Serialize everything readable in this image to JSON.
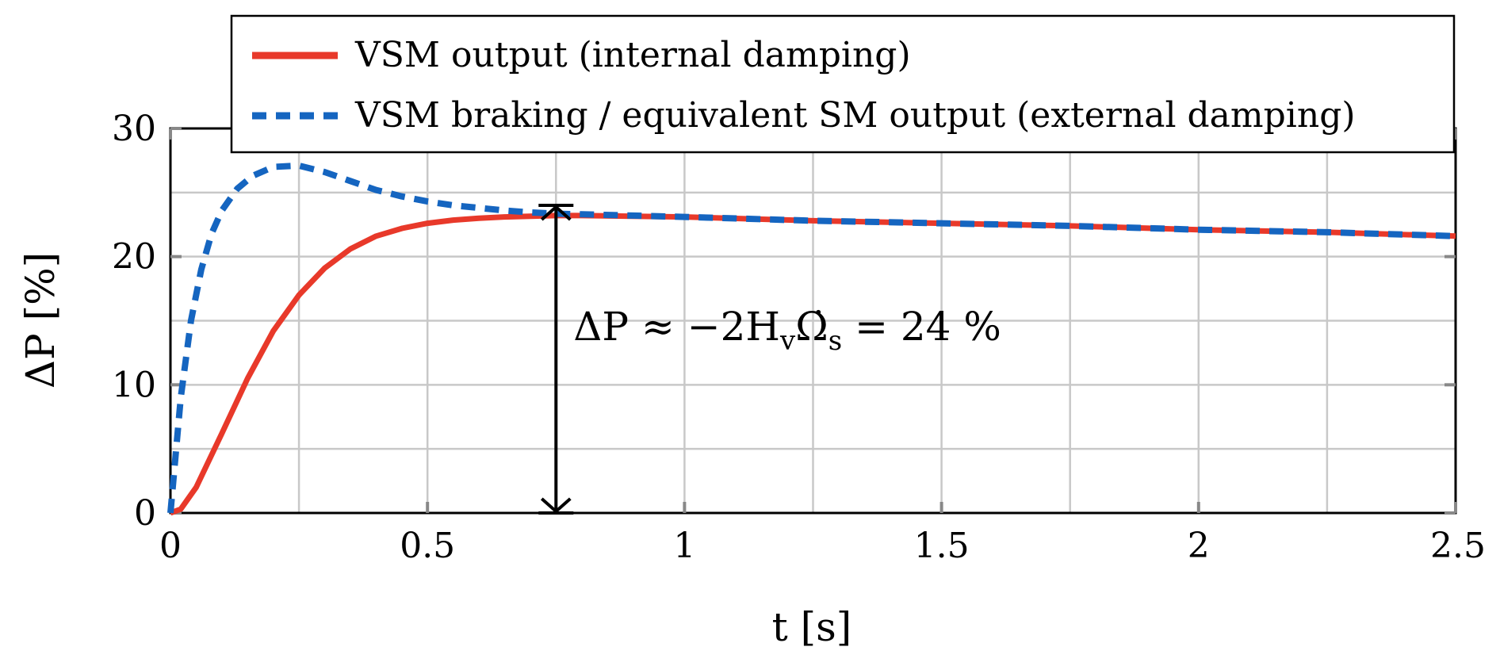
{
  "chart_data": {
    "type": "line",
    "xlabel": "t [s]",
    "ylabel": "ΔP [%]",
    "xlim": [
      0,
      2.5
    ],
    "ylim": [
      0,
      30
    ],
    "xticks": [
      0,
      0.5,
      1,
      1.5,
      2,
      2.5
    ],
    "xtick_labels": [
      "0",
      "0.5",
      "1",
      "1.5",
      "2",
      "2.5"
    ],
    "yticks": [
      0,
      10,
      20,
      30
    ],
    "ytick_labels": [
      "0",
      "10",
      "20",
      "30"
    ],
    "grid": true,
    "legend_position": "top-right",
    "series": [
      {
        "name": "VSM output (internal damping)",
        "color": "#e8392a",
        "style": "solid",
        "x": [
          0,
          0.02,
          0.05,
          0.1,
          0.15,
          0.2,
          0.25,
          0.3,
          0.35,
          0.4,
          0.45,
          0.5,
          0.55,
          0.6,
          0.65,
          0.7,
          0.75,
          0.8,
          0.9,
          1.0,
          1.25,
          1.5,
          1.75,
          2.0,
          2.25,
          2.5
        ],
        "y": [
          0,
          0.3,
          2.0,
          6.2,
          10.5,
          14.2,
          17.0,
          19.1,
          20.6,
          21.6,
          22.2,
          22.6,
          22.85,
          23.0,
          23.1,
          23.15,
          23.2,
          23.2,
          23.15,
          23.1,
          22.8,
          22.6,
          22.4,
          22.1,
          21.9,
          21.6
        ]
      },
      {
        "name": "VSM braking / equivalent SM output (external damping)",
        "color": "#1565c0",
        "style": "dashed",
        "x": [
          0,
          0.01,
          0.02,
          0.04,
          0.06,
          0.08,
          0.1,
          0.13,
          0.16,
          0.2,
          0.25,
          0.3,
          0.35,
          0.4,
          0.45,
          0.5,
          0.55,
          0.6,
          0.65,
          0.7,
          0.75,
          0.8,
          0.9,
          1.0,
          1.25,
          1.5,
          1.75,
          2.0,
          2.25,
          2.5
        ],
        "y": [
          0,
          4.5,
          9.0,
          15.0,
          19.0,
          21.8,
          23.6,
          25.3,
          26.3,
          27.0,
          27.1,
          26.6,
          25.9,
          25.2,
          24.7,
          24.3,
          24.0,
          23.8,
          23.6,
          23.45,
          23.35,
          23.3,
          23.2,
          23.1,
          22.8,
          22.6,
          22.4,
          22.1,
          21.9,
          21.6
        ]
      }
    ],
    "annotation": {
      "text_parts": [
        "ΔP ≈ −2H",
        "v",
        "Ω̇",
        "s",
        " = 24 %"
      ],
      "arrow_x": 0.75,
      "arrow_y": [
        0,
        24
      ]
    }
  }
}
